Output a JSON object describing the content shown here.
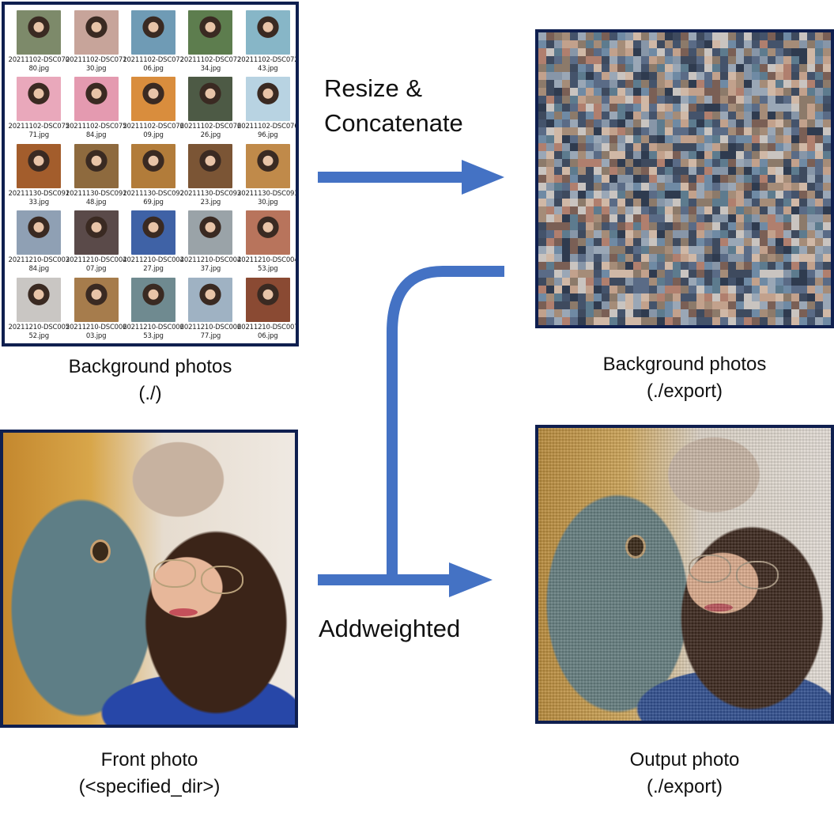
{
  "thumbnails": [
    {
      "name": "20211102-DSC07080.jpg",
      "color": "#7d8a6a"
    },
    {
      "name": "20211102-DSC07130.jpg",
      "color": "#c7a49a"
    },
    {
      "name": "20211102-DSC07206.jpg",
      "color": "#6f9bb5"
    },
    {
      "name": "20211102-DSC07234.jpg",
      "color": "#5d7d4e"
    },
    {
      "name": "20211102-DSC07243.jpg",
      "color": "#87b6c7"
    },
    {
      "name": "20211102-DSC07571.jpg",
      "color": "#e9a8bb"
    },
    {
      "name": "20211102-DSC07584.jpg",
      "color": "#e49ab0"
    },
    {
      "name": "20211102-DSC07609.jpg",
      "color": "#d98d3d"
    },
    {
      "name": "20211102-DSC07626.jpg",
      "color": "#4d5a45"
    },
    {
      "name": "20211102-DSC07696.jpg",
      "color": "#b8d3e2"
    },
    {
      "name": "20211130-DSC09133.jpg",
      "color": "#a35d2c"
    },
    {
      "name": "20211130-DSC09148.jpg",
      "color": "#8e6a3e"
    },
    {
      "name": "20211130-DSC09269.jpg",
      "color": "#b27c3a"
    },
    {
      "name": "20211130-DSC09323.jpg",
      "color": "#7b5535"
    },
    {
      "name": "20211130-DSC09330.jpg",
      "color": "#c08a4a"
    },
    {
      "name": "20211210-DSC00384.jpg",
      "color": "#8fa0b4"
    },
    {
      "name": "20211210-DSC00407.jpg",
      "color": "#5a4a49"
    },
    {
      "name": "20211210-DSC00427.jpg",
      "color": "#3f62a6"
    },
    {
      "name": "20211210-DSC00437.jpg",
      "color": "#9aa3a8"
    },
    {
      "name": "20211210-DSC00453.jpg",
      "color": "#b8745c"
    },
    {
      "name": "20211210-DSC00552.jpg",
      "color": "#c9c6c3"
    },
    {
      "name": "20211210-DSC00603.jpg",
      "color": "#a67c4c"
    },
    {
      "name": "20211210-DSC00653.jpg",
      "color": "#6f8a90"
    },
    {
      "name": "20211210-DSC00677.jpg",
      "color": "#9fb2c3"
    },
    {
      "name": "20211210-DSC00706.jpg",
      "color": "#8a4a33"
    }
  ],
  "labels": {
    "bg_source_line1": "Background photos",
    "bg_source_line2": "(./)",
    "bg_export_line1": "Background photos",
    "bg_export_line2": "(./export)",
    "front_line1": "Front photo",
    "front_line2": "(<specified_dir>)",
    "output_line1": "Output photo",
    "output_line2": "(./export)"
  },
  "operations": {
    "resize_line1": "Resize &",
    "resize_line2": "Concatenate",
    "addweighted": "Addweighted"
  },
  "colors": {
    "arrow": "#4472c4",
    "frame": "#0f1f4f"
  }
}
